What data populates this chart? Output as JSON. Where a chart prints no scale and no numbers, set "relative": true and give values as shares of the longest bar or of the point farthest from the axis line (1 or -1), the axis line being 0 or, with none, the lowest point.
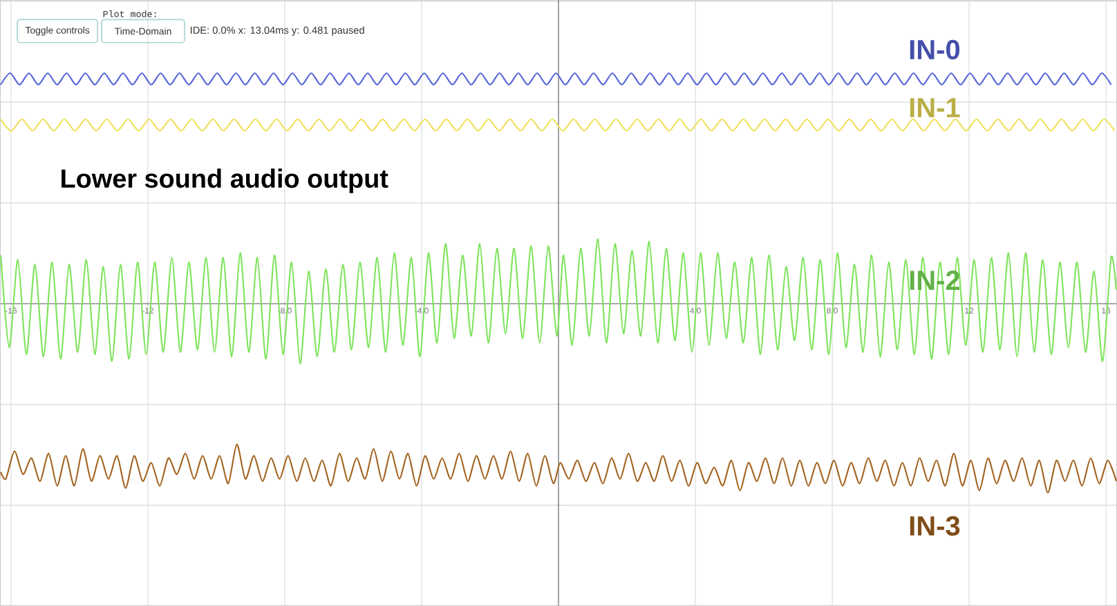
{
  "chart_data": {
    "type": "line",
    "title": "Lower sound audio output",
    "annotations": [
      "Plot mode:",
      "Toggle controls",
      "Time-Domain",
      "IDE: 0.0% x: 13.04ms y: 0.481 paused"
    ],
    "relative": true,
    "xlim": [
      -16.32,
      16.32
    ],
    "xticks": [
      -16,
      -12,
      {
        "value": -8,
        "label": "-8.0"
      },
      {
        "value": -4,
        "label": "-4.0"
      },
      {
        "value": 4,
        "label": "4.0"
      },
      {
        "value": 8,
        "label": "8.0"
      },
      12,
      16
    ],
    "grid": true,
    "series": [
      {
        "name": "IN-0",
        "color": "#5865d8",
        "x": [
          -16.3,
          -16.025,
          -15.75,
          -15.475,
          -15.2,
          -14.925,
          -14.65,
          -14.375,
          -14.1,
          -13.825,
          -13.55,
          -13.275,
          -13.0,
          -12.725,
          -12.45,
          -12.175,
          -11.9,
          -11.625,
          -11.35,
          -11.075,
          -10.8,
          -10.525,
          -10.25,
          -9.975,
          -9.7,
          -9.425,
          -9.15,
          -8.875,
          -8.6,
          -8.325,
          -8.05,
          -7.775,
          -7.5,
          -7.225,
          -6.95,
          -6.675,
          -6.4,
          -6.125,
          -5.85,
          -5.575,
          -5.3,
          -5.025,
          -4.75,
          -4.475,
          -4.2,
          -3.925,
          -3.65,
          -3.375,
          -3.1,
          -2.825,
          -2.55,
          -2.275,
          -2.0,
          -1.725,
          -1.45,
          -1.175,
          -0.9,
          -0.625,
          -0.35,
          -0.075,
          0.2,
          0.475,
          0.75,
          1.025,
          1.3,
          1.575,
          1.85,
          2.125,
          2.4,
          2.675,
          2.95,
          3.225,
          3.5,
          3.775,
          4.05,
          4.325,
          4.6,
          4.875,
          5.15,
          5.425,
          5.7,
          5.975,
          6.25,
          6.525,
          6.8,
          7.075,
          7.35,
          7.625,
          7.9,
          8.175,
          8.45,
          8.725,
          9.0,
          9.275,
          9.55,
          9.825,
          10.1,
          10.375,
          10.65,
          10.925,
          11.2,
          11.475,
          11.75,
          12.025,
          12.3,
          12.575,
          12.85,
          13.125,
          13.4,
          13.675,
          13.95,
          14.225,
          14.5,
          14.775,
          15.05,
          15.325,
          15.6,
          15.875,
          16.15
        ],
        "values": [
          0.95,
          1,
          0.95,
          1,
          0.95,
          1,
          0.95,
          1,
          0.95,
          1,
          0.95,
          1,
          0.95,
          1,
          0.95,
          1,
          0.95,
          1,
          0.95,
          1,
          0.95,
          1,
          0.95,
          1,
          0.95,
          1,
          0.95,
          1,
          0.95,
          1,
          0.95,
          1,
          0.95,
          1,
          0.95,
          1,
          0.95,
          1,
          0.95,
          1,
          0.95,
          1,
          0.95,
          1,
          0.95,
          1,
          0.95,
          1,
          0.95,
          1,
          0.95,
          1,
          0.95,
          1,
          0.95,
          1,
          0.95,
          1,
          0.95,
          1,
          0.95,
          1,
          0.95,
          1,
          0.95,
          1,
          0.95,
          1,
          0.95,
          1,
          0.95,
          1,
          0.95,
          1,
          0.95,
          1,
          0.95,
          1,
          0.95,
          1,
          0.95,
          1,
          0.95,
          1,
          0.95,
          1,
          0.95,
          1,
          0.95,
          1,
          0.95,
          1,
          0.95,
          1,
          0.95,
          1,
          0.95,
          1,
          0.95,
          1,
          0.95,
          1,
          0.95,
          1,
          0.95,
          1,
          0.95,
          1,
          0.95,
          1,
          0.95,
          1,
          0.95,
          1,
          0.95,
          1,
          0.95,
          1,
          0.95
        ]
      },
      {
        "name": "IN-1",
        "color": "#efe05a",
        "x": [
          -16.3,
          -15.99,
          -15.68,
          -15.37,
          -15.06,
          -14.75,
          -14.44,
          -14.13,
          -13.82,
          -13.51,
          -13.2,
          -12.89,
          -12.58,
          -12.27,
          -11.96,
          -11.65,
          -11.34,
          -11.03,
          -10.72,
          -10.41,
          -10.1,
          -9.79,
          -9.48,
          -9.17,
          -8.86,
          -8.55,
          -8.24,
          -7.93,
          -7.62,
          -7.31,
          -7.0,
          -6.69,
          -6.38,
          -6.07,
          -5.76,
          -5.45,
          -5.14,
          -4.83,
          -4.52,
          -4.21,
          -3.9,
          -3.59,
          -3.28,
          -2.97,
          -2.66,
          -2.35,
          -2.04,
          -1.73,
          -1.42,
          -1.11,
          -0.8,
          -0.49,
          -0.18,
          0.13,
          0.44,
          0.75,
          1.06,
          1.37,
          1.68,
          1.99,
          2.3,
          2.61,
          2.92,
          3.23,
          3.54,
          3.85,
          4.16,
          4.47,
          4.78,
          5.09,
          5.4,
          5.71,
          6.02,
          6.33,
          6.64,
          6.95,
          7.26,
          7.57,
          7.88,
          8.19,
          8.5,
          8.81,
          9.12,
          9.43,
          9.74,
          10.05,
          10.36,
          10.67,
          10.98,
          11.29,
          11.6,
          11.91,
          12.22,
          12.53,
          12.84,
          13.15,
          13.46,
          13.77,
          14.08,
          14.39,
          14.7,
          15.01,
          15.32,
          15.63,
          15.94,
          16.25
        ],
        "values": [
          0.8,
          0.75,
          0.8,
          0.75,
          0.8,
          0.75,
          0.8,
          0.75,
          0.8,
          0.75,
          0.8,
          0.75,
          0.8,
          0.75,
          0.8,
          0.75,
          0.8,
          0.75,
          0.8,
          0.75,
          0.8,
          0.75,
          0.8,
          0.75,
          0.8,
          0.75,
          0.8,
          0.75,
          0.8,
          0.75,
          0.8,
          0.75,
          0.8,
          0.75,
          0.8,
          0.75,
          0.8,
          0.75,
          0.8,
          0.75,
          0.8,
          0.75,
          0.8,
          0.75,
          0.8,
          0.75,
          0.8,
          0.75,
          0.8,
          0.75,
          0.8,
          0.75,
          0.8,
          0.75,
          0.8,
          0.75,
          0.8,
          0.75,
          0.8,
          0.75,
          0.8,
          0.75,
          0.8,
          0.75,
          0.8,
          0.75,
          0.8,
          0.75,
          0.8,
          0.75,
          0.8,
          0.75,
          0.8,
          0.75,
          0.8,
          0.75,
          0.8,
          0.75,
          0.8,
          0.75,
          0.8,
          0.75,
          0.8,
          0.75,
          0.8,
          0.75,
          0.8,
          0.75,
          0.8,
          0.75,
          0.8,
          0.75,
          0.8,
          0.75,
          0.8,
          0.75,
          0.8,
          0.75,
          0.8,
          0.75,
          0.8,
          0.75,
          0.8,
          0.75,
          0.8,
          0.75
        ]
      },
      {
        "name": "IN-2",
        "color": "#7ee35c",
        "x": [
          -16.3,
          -16.05,
          -15.8,
          -15.55,
          -15.3,
          -15.05,
          -14.8,
          -14.55,
          -14.3,
          -14.05,
          -13.8,
          -13.55,
          -13.3,
          -13.05,
          -12.8,
          -12.55,
          -12.3,
          -12.05,
          -11.8,
          -11.55,
          -11.3,
          -11.05,
          -10.8,
          -10.55,
          -10.3,
          -10.05,
          -9.8,
          -9.55,
          -9.3,
          -9.05,
          -8.8,
          -8.55,
          -8.3,
          -8.05,
          -7.8,
          -7.55,
          -7.3,
          -7.05,
          -6.8,
          -6.55,
          -6.3,
          -6.05,
          -5.8,
          -5.55,
          -5.3,
          -5.05,
          -4.8,
          -4.55,
          -4.3,
          -4.05,
          -3.8,
          -3.55,
          -3.3,
          -3.05,
          -2.8,
          -2.55,
          -2.3,
          -2.05,
          -1.8,
          -1.55,
          -1.3,
          -1.05,
          -0.8,
          -0.55,
          -0.3,
          -0.05,
          0.15,
          0.4,
          0.65,
          0.9,
          1.15,
          1.4,
          1.65,
          1.9,
          2.15,
          2.4,
          2.65,
          2.9,
          3.15,
          3.4,
          3.65,
          3.9,
          4.15,
          4.4,
          4.65,
          4.9,
          5.15,
          5.4,
          5.65,
          5.9,
          6.15,
          6.4,
          6.65,
          6.9,
          7.15,
          7.4,
          7.65,
          7.9,
          8.15,
          8.4,
          8.65,
          8.9,
          9.15,
          9.4,
          9.65,
          9.9,
          10.15,
          10.4,
          10.65,
          10.9,
          11.15,
          11.4,
          11.65,
          11.9,
          12.15,
          12.4,
          12.65,
          12.9,
          13.15,
          13.4,
          13.65,
          13.9,
          14.15,
          14.4,
          14.65,
          14.9,
          15.15,
          15.4,
          15.65,
          15.9,
          16.15,
          16.3
        ],
        "values": [
          0.21,
          -0.19,
          0.19,
          -0.22,
          0.17,
          -0.23,
          0.18,
          -0.24,
          0.17,
          -0.21,
          0.19,
          -0.22,
          0.16,
          -0.25,
          0.17,
          -0.24,
          0.18,
          -0.22,
          0.18,
          -0.21,
          0.2,
          -0.21,
          0.18,
          -0.2,
          0.2,
          -0.21,
          0.2,
          -0.23,
          0.22,
          -0.21,
          0.2,
          -0.24,
          0.21,
          -0.22,
          0.18,
          -0.26,
          0.14,
          -0.23,
          0.15,
          -0.21,
          0.17,
          -0.2,
          0.18,
          -0.19,
          0.2,
          -0.21,
          0.22,
          -0.18,
          0.2,
          -0.23,
          0.22,
          -0.17,
          0.26,
          -0.15,
          0.21,
          -0.14,
          0.26,
          -0.17,
          0.24,
          -0.13,
          0.24,
          -0.15,
          0.25,
          -0.17,
          0.25,
          -0.14,
          0.21,
          -0.18,
          0.24,
          -0.14,
          0.28,
          -0.17,
          0.26,
          -0.13,
          0.23,
          -0.14,
          0.27,
          -0.17,
          0.24,
          -0.16,
          0.22,
          -0.21,
          0.22,
          -0.18,
          0.22,
          -0.15,
          0.18,
          -0.17,
          0.2,
          -0.22,
          0.21,
          -0.2,
          0.16,
          -0.16,
          0.2,
          -0.2,
          0.19,
          -0.22,
          0.22,
          -0.19,
          0.17,
          -0.21,
          0.21,
          -0.23,
          0.18,
          -0.2,
          0.19,
          -0.22,
          0.2,
          -0.24,
          0.18,
          -0.22,
          0.2,
          -0.18,
          0.19,
          -0.21,
          0.2,
          -0.2,
          0.22,
          -0.23,
          0.22,
          -0.21,
          0.19,
          -0.22,
          0.18,
          -0.19,
          0.18,
          -0.21,
          0.14,
          -0.25,
          0.2,
          0.06
        ]
      },
      {
        "name": "IN-3",
        "color": "#a3631f",
        "x": [
          -16.3,
          -16.15,
          -15.9,
          -15.65,
          -15.4,
          -15.15,
          -14.9,
          -14.65,
          -14.4,
          -14.15,
          -13.9,
          -13.65,
          -13.4,
          -13.15,
          -12.9,
          -12.65,
          -12.4,
          -12.15,
          -11.9,
          -11.65,
          -11.4,
          -11.15,
          -10.9,
          -10.65,
          -10.4,
          -10.15,
          -9.9,
          -9.65,
          -9.4,
          -9.15,
          -8.9,
          -8.65,
          -8.4,
          -8.15,
          -7.9,
          -7.65,
          -7.4,
          -7.15,
          -6.9,
          -6.65,
          -6.4,
          -6.15,
          -5.9,
          -5.65,
          -5.4,
          -5.15,
          -4.9,
          -4.65,
          -4.4,
          -4.15,
          -3.9,
          -3.65,
          -3.4,
          -3.15,
          -2.9,
          -2.65,
          -2.4,
          -2.15,
          -1.9,
          -1.65,
          -1.4,
          -1.15,
          -0.9,
          -0.65,
          -0.4,
          -0.15,
          0.05,
          0.3,
          0.55,
          0.8,
          1.05,
          1.3,
          1.55,
          1.8,
          2.05,
          2.3,
          2.55,
          2.8,
          3.05,
          3.3,
          3.55,
          3.8,
          4.05,
          4.3,
          4.55,
          4.8,
          5.05,
          5.3,
          5.55,
          5.8,
          6.05,
          6.3,
          6.55,
          6.8,
          7.05,
          7.3,
          7.55,
          7.8,
          8.05,
          8.3,
          8.55,
          8.8,
          9.05,
          9.3,
          9.55,
          9.8,
          10.05,
          10.3,
          10.55,
          10.8,
          11.05,
          11.3,
          11.55,
          11.8,
          12.05,
          12.3,
          12.55,
          12.8,
          13.05,
          13.3,
          13.55,
          13.8,
          14.05,
          14.3,
          14.55,
          14.8,
          15.05,
          15.3,
          15.55,
          15.8,
          16.05,
          16.3
        ],
        "values": [
          -0.73,
          -0.76,
          -0.64,
          -0.74,
          -0.67,
          -0.77,
          -0.65,
          -0.79,
          -0.66,
          -0.79,
          -0.63,
          -0.77,
          -0.66,
          -0.76,
          -0.66,
          -0.8,
          -0.66,
          -0.77,
          -0.69,
          -0.79,
          -0.67,
          -0.74,
          -0.65,
          -0.76,
          -0.66,
          -0.76,
          -0.66,
          -0.78,
          -0.61,
          -0.76,
          -0.66,
          -0.77,
          -0.67,
          -0.76,
          -0.66,
          -0.77,
          -0.67,
          -0.77,
          -0.68,
          -0.79,
          -0.65,
          -0.77,
          -0.67,
          -0.76,
          -0.63,
          -0.77,
          -0.64,
          -0.76,
          -0.65,
          -0.79,
          -0.66,
          -0.76,
          -0.67,
          -0.76,
          -0.65,
          -0.77,
          -0.66,
          -0.76,
          -0.66,
          -0.76,
          -0.64,
          -0.77,
          -0.65,
          -0.79,
          -0.66,
          -0.78,
          -0.69,
          -0.76,
          -0.68,
          -0.77,
          -0.69,
          -0.78,
          -0.67,
          -0.76,
          -0.65,
          -0.77,
          -0.69,
          -0.77,
          -0.66,
          -0.77,
          -0.68,
          -0.79,
          -0.69,
          -0.78,
          -0.71,
          -0.79,
          -0.68,
          -0.81,
          -0.69,
          -0.77,
          -0.67,
          -0.78,
          -0.67,
          -0.79,
          -0.68,
          -0.79,
          -0.69,
          -0.78,
          -0.68,
          -0.79,
          -0.69,
          -0.78,
          -0.67,
          -0.77,
          -0.68,
          -0.79,
          -0.69,
          -0.79,
          -0.67,
          -0.77,
          -0.68,
          -0.79,
          -0.65,
          -0.79,
          -0.68,
          -0.81,
          -0.67,
          -0.78,
          -0.68,
          -0.77,
          -0.67,
          -0.79,
          -0.68,
          -0.82,
          -0.68,
          -0.77,
          -0.68,
          -0.79,
          -0.67,
          -0.78,
          -0.68,
          -0.77
        ]
      }
    ]
  }
}
